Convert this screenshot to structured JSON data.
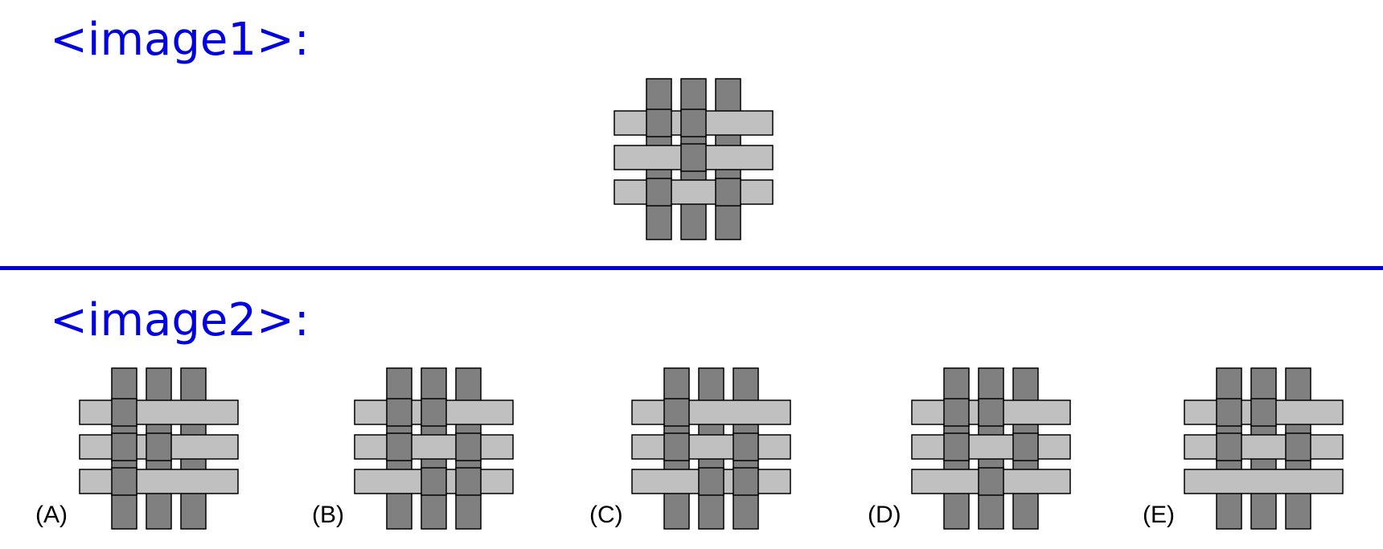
{
  "headers": {
    "image1": "<image1>:",
    "image2": "<image2>:"
  },
  "colors": {
    "header": "#0000e0",
    "divider": "#0000d8",
    "warp_fill": "#808080",
    "weft_fill": "#c0c0c0",
    "outline": "#000000"
  },
  "question_pattern": {
    "crossings_top_rows": [
      [
        "warp",
        "warp",
        "weft"
      ],
      [
        "weft",
        "warp",
        "weft"
      ],
      [
        "warp",
        "weft",
        "warp"
      ]
    ]
  },
  "options": [
    {
      "label": "(A)",
      "crossings_top_rows": [
        [
          "warp",
          "weft",
          "weft"
        ],
        [
          "warp",
          "warp",
          "weft"
        ],
        [
          "warp",
          "weft",
          "weft"
        ]
      ]
    },
    {
      "label": "(B)",
      "crossings_top_rows": [
        [
          "warp",
          "warp",
          "weft"
        ],
        [
          "warp",
          "weft",
          "warp"
        ],
        [
          "weft",
          "warp",
          "warp"
        ]
      ]
    },
    {
      "label": "(C)",
      "crossings_top_rows": [
        [
          "warp",
          "weft",
          "weft"
        ],
        [
          "warp",
          "weft",
          "warp"
        ],
        [
          "weft",
          "warp",
          "warp"
        ]
      ]
    },
    {
      "label": "(D)",
      "crossings_top_rows": [
        [
          "warp",
          "warp",
          "weft"
        ],
        [
          "warp",
          "weft",
          "warp"
        ],
        [
          "weft",
          "warp",
          "weft"
        ]
      ]
    },
    {
      "label": "(E)",
      "crossings_top_rows": [
        [
          "warp",
          "warp",
          "weft"
        ],
        [
          "warp",
          "weft",
          "warp"
        ],
        [
          "weft",
          "weft",
          "weft"
        ]
      ]
    }
  ]
}
